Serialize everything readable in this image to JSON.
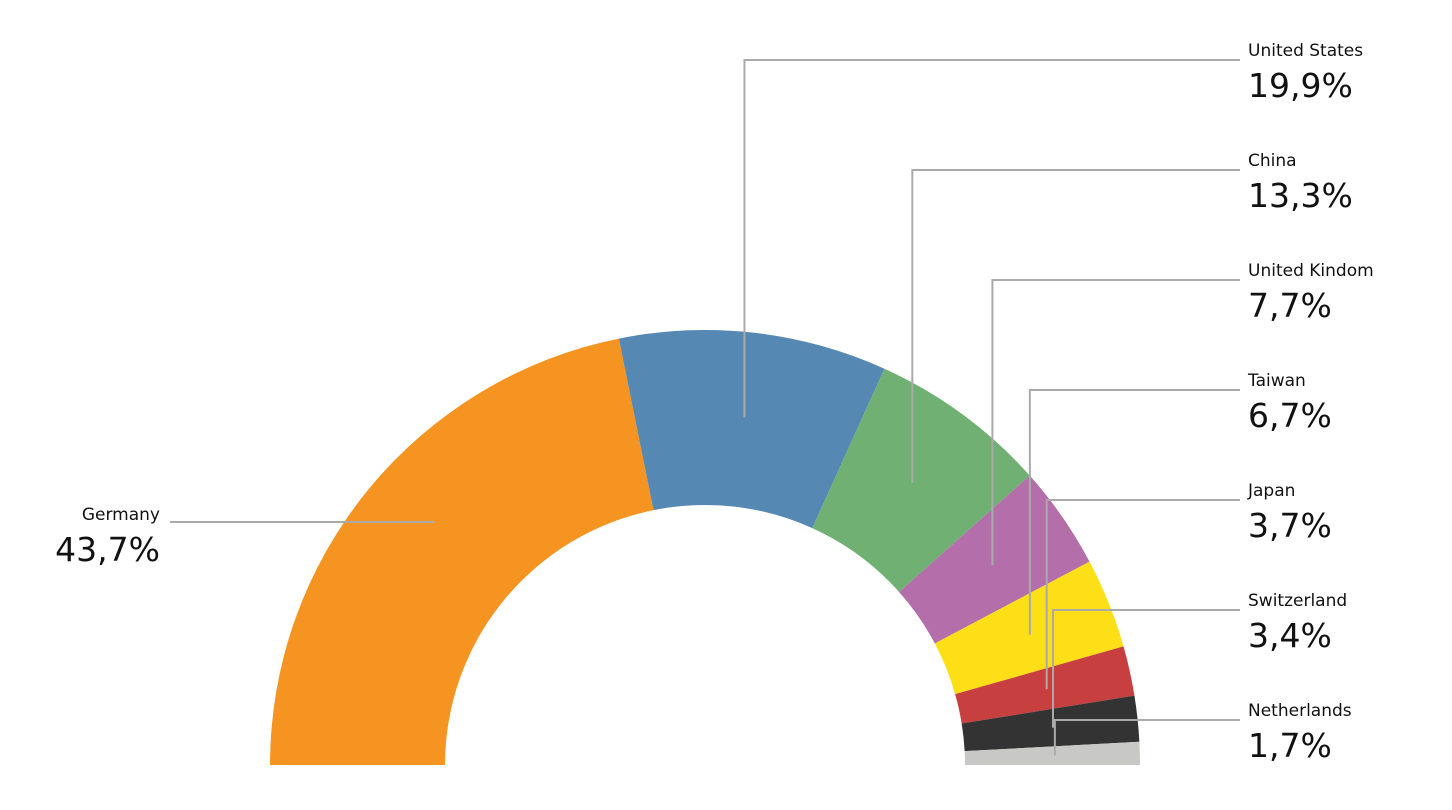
{
  "chart_data": {
    "type": "donut-half",
    "categories": [
      "Germany",
      "United States",
      "China",
      "United Kindom",
      "Taiwan",
      "Japan",
      "Switzerland",
      "Netherlands"
    ],
    "values": [
      43.7,
      19.9,
      13.3,
      7.7,
      6.7,
      3.7,
      3.4,
      1.7
    ],
    "value_labels": [
      "43,7%",
      "19,9%",
      "13,3%",
      "7,7%",
      "6,7%",
      "3,7%",
      "3,4%",
      "1,7%"
    ],
    "colors": [
      "#f59420",
      "#5589b4",
      "#70b073",
      "#b46fab",
      "#fddf17",
      "#c73f3f",
      "#333333",
      "#c8c8c6"
    ]
  }
}
